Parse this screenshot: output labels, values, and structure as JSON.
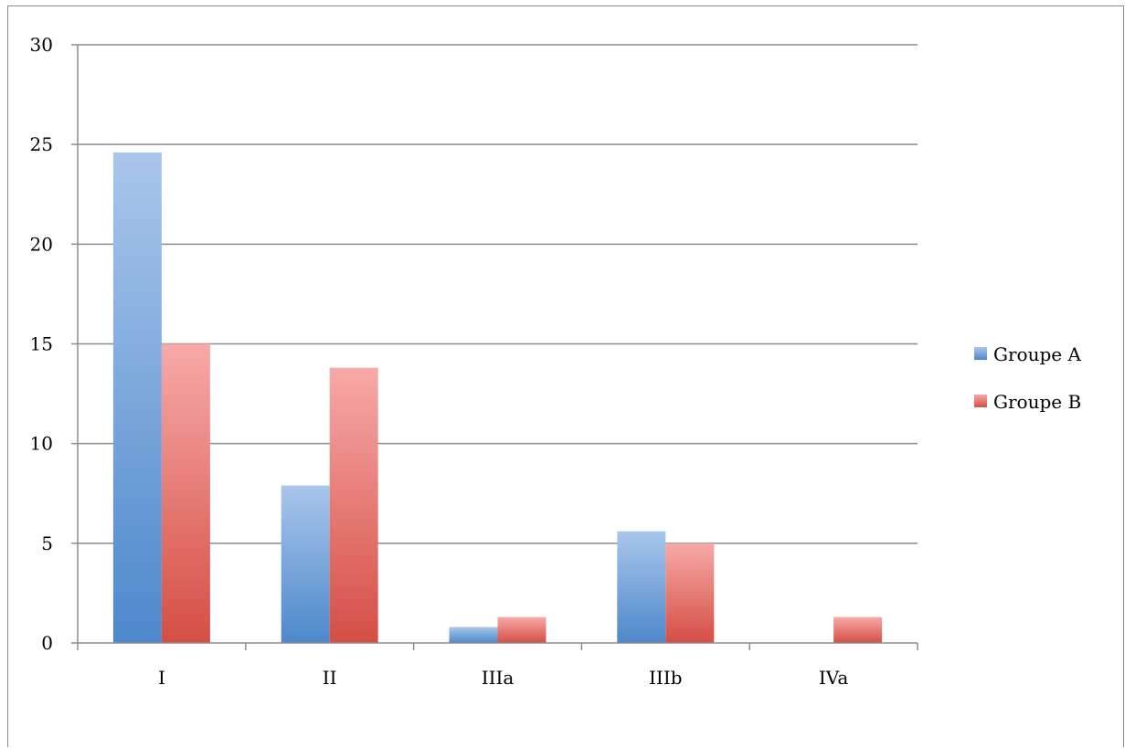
{
  "chart_data": {
    "type": "bar",
    "title": "",
    "xlabel": "",
    "ylabel": "",
    "categories": [
      "I",
      "II",
      "IIIa",
      "IIIb",
      "IVa"
    ],
    "series": [
      {
        "name": "Groupe A",
        "values": [
          24.6,
          7.9,
          0.8,
          5.6,
          0
        ],
        "color": "#4f89cc"
      },
      {
        "name": "Groupe B",
        "values": [
          15.0,
          13.8,
          1.3,
          5.0,
          1.3
        ],
        "color": "#d9534f"
      }
    ],
    "ylim": [
      0,
      30
    ],
    "yticks": [
      "0",
      "5",
      "10",
      "15",
      "20",
      "25",
      "30"
    ],
    "grid": true,
    "legend_position": "right"
  }
}
